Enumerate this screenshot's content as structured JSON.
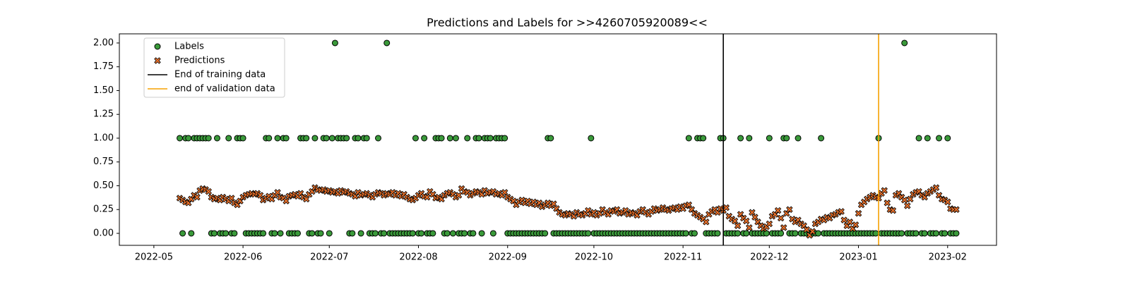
{
  "chart_data": {
    "type": "scatter",
    "title": "Predictions and Labels for >>4260705920089<<",
    "xlim": [
      19101,
      19406
    ],
    "xticks": [
      {
        "value": 19113,
        "label": "2022-05"
      },
      {
        "value": 19144,
        "label": "2022-06"
      },
      {
        "value": 19174,
        "label": "2022-07"
      },
      {
        "value": 19205,
        "label": "2022-08"
      },
      {
        "value": 19236,
        "label": "2022-09"
      },
      {
        "value": 19266,
        "label": "2022-10"
      },
      {
        "value": 19297,
        "label": "2022-11"
      },
      {
        "value": 19327,
        "label": "2022-12"
      },
      {
        "value": 19358,
        "label": "2023-01"
      },
      {
        "value": 19389,
        "label": "2023-02"
      }
    ],
    "ylim": [
      -0.126,
      2.096
    ],
    "yticks": [
      {
        "value": 0,
        "label": "0.00"
      },
      {
        "value": 0.25,
        "label": "0.25"
      },
      {
        "value": 0.5,
        "label": "0.50"
      },
      {
        "value": 0.75,
        "label": "0.75"
      },
      {
        "value": 1,
        "label": "1.00"
      },
      {
        "value": 1.25,
        "label": "1.25"
      },
      {
        "value": 1.5,
        "label": "1.50"
      },
      {
        "value": 1.75,
        "label": "1.75"
      },
      {
        "value": 2,
        "label": "2.00"
      }
    ],
    "legend": "upper left",
    "x": [
      19122,
      19123,
      19124,
      19125,
      19126,
      19127,
      19128,
      19129,
      19130,
      19131,
      19132,
      19133,
      19134,
      19135,
      19136,
      19137,
      19138,
      19139,
      19140,
      19141,
      19142,
      19143,
      19144,
      19145,
      19146,
      19147,
      19148,
      19149,
      19150,
      19151,
      19152,
      19153,
      19154,
      19155,
      19156,
      19157,
      19158,
      19159,
      19160,
      19161,
      19162,
      19163,
      19164,
      19165,
      19166,
      19167,
      19168,
      19169,
      19170,
      19171,
      19172,
      19173,
      19174,
      19175,
      19176,
      19177,
      19178,
      19179,
      19180,
      19181,
      19182,
      19183,
      19184,
      19185,
      19186,
      19187,
      19188,
      19189,
      19190,
      19191,
      19192,
      19193,
      19194,
      19195,
      19196,
      19197,
      19198,
      19199,
      19200,
      19201,
      19202,
      19203,
      19204,
      19205,
      19206,
      19207,
      19208,
      19209,
      19210,
      19211,
      19212,
      19213,
      19214,
      19215,
      19216,
      19217,
      19218,
      19219,
      19220,
      19221,
      19222,
      19223,
      19224,
      19225,
      19226,
      19227,
      19228,
      19229,
      19230,
      19231,
      19232,
      19233,
      19234,
      19235,
      19236,
      19237,
      19238,
      19239,
      19240,
      19241,
      19242,
      19243,
      19244,
      19245,
      19246,
      19247,
      19248,
      19249,
      19250,
      19251,
      19252,
      19253,
      19254,
      19255,
      19256,
      19257,
      19258,
      19259,
      19260,
      19261,
      19262,
      19263,
      19264,
      19265,
      19266,
      19267,
      19268,
      19269,
      19270,
      19271,
      19272,
      19273,
      19274,
      19275,
      19276,
      19277,
      19278,
      19279,
      19280,
      19281,
      19282,
      19283,
      19284,
      19285,
      19286,
      19287,
      19288,
      19289,
      19290,
      19291,
      19292,
      19293,
      19294,
      19295,
      19296,
      19297,
      19298,
      19299,
      19300,
      19301,
      19302,
      19303,
      19304,
      19305,
      19306,
      19307,
      19308,
      19309,
      19310,
      19311,
      19312,
      19313,
      19314,
      19315,
      19316,
      19317,
      19318,
      19319,
      19320,
      19321,
      19322,
      19323,
      19324,
      19325,
      19326,
      19327,
      19328,
      19329,
      19330,
      19331,
      19332,
      19333,
      19334,
      19335,
      19336,
      19337,
      19338,
      19339,
      19340,
      19341,
      19342,
      19343,
      19344,
      19345,
      19346,
      19347,
      19348,
      19349,
      19350,
      19351,
      19352,
      19353,
      19354,
      19355,
      19356,
      19357,
      19358,
      19359,
      19360,
      19361,
      19362,
      19363,
      19364,
      19365,
      19366,
      19367,
      19368,
      19369,
      19370,
      19371,
      19372,
      19373,
      19374,
      19375,
      19376,
      19377,
      19378,
      19379,
      19380,
      19381,
      19382,
      19383,
      19384,
      19385,
      19386,
      19387,
      19388,
      19389,
      19390,
      19391,
      19392
    ],
    "series": [
      {
        "name": "Labels",
        "color": "#3a9a3a",
        "marker": "circle",
        "values": [
          1,
          0,
          1,
          1,
          0,
          1,
          1,
          1,
          1,
          1,
          1,
          0,
          0,
          1,
          0,
          0,
          0,
          1,
          0,
          0,
          1,
          1,
          1,
          0,
          0,
          0,
          0,
          0,
          0,
          0,
          1,
          1,
          0,
          0,
          1,
          0,
          1,
          1,
          0,
          0,
          0,
          0,
          1,
          1,
          1,
          0,
          0,
          1,
          0,
          0,
          1,
          1,
          0,
          1,
          2,
          1,
          1,
          1,
          1,
          0,
          0,
          1,
          1,
          0,
          1,
          1,
          0,
          0,
          0,
          1,
          0,
          0,
          2,
          0,
          0,
          0,
          0,
          0,
          0,
          0,
          0,
          0,
          1,
          0,
          0,
          1,
          0,
          0,
          0,
          1,
          1,
          1,
          0,
          0,
          1,
          0,
          1,
          0,
          0,
          0,
          1,
          0,
          0,
          1,
          1,
          0,
          1,
          1,
          1,
          0,
          1,
          1,
          1,
          1,
          0,
          0,
          0,
          0,
          0,
          0,
          0,
          0,
          0,
          0,
          0,
          0,
          0,
          0,
          1,
          1,
          0,
          0,
          0,
          0,
          0,
          0,
          0,
          0,
          0,
          0,
          0,
          0,
          0,
          1,
          0,
          0,
          0,
          0,
          0,
          0,
          0,
          0,
          0,
          0,
          0,
          0,
          0,
          0,
          0,
          0,
          0,
          0,
          0,
          0,
          0,
          0,
          0,
          0,
          0,
          0,
          0,
          0,
          0,
          0,
          0,
          0,
          0,
          1,
          0,
          0,
          1,
          1,
          1,
          0,
          0,
          0,
          0,
          0,
          1,
          1,
          0,
          0,
          0,
          0,
          0,
          1,
          0,
          0,
          1,
          0,
          0,
          0,
          0,
          0,
          0,
          1,
          0,
          0,
          0,
          0,
          1,
          1,
          0,
          0,
          0,
          1,
          0,
          0,
          0,
          0,
          0,
          0,
          0,
          1,
          0,
          0,
          0,
          0,
          0,
          0,
          0,
          0,
          0,
          0,
          0,
          0,
          0,
          0,
          0,
          0,
          0,
          0,
          0,
          1,
          0,
          0,
          0,
          0,
          0,
          0,
          0,
          0,
          2,
          0,
          0,
          0,
          0,
          1,
          0,
          0,
          1,
          0,
          0,
          0,
          1,
          0,
          0,
          1,
          0,
          0,
          0
        ]
      },
      {
        "name": "Predictions",
        "color": "#e8702a",
        "marker": "x",
        "values": [
          0.37,
          0.35,
          0.33,
          0.32,
          0.36,
          0.4,
          0.38,
          0.45,
          0.47,
          0.46,
          0.44,
          0.38,
          0.36,
          0.37,
          0.35,
          0.38,
          0.36,
          0.34,
          0.37,
          0.32,
          0.3,
          0.34,
          0.38,
          0.4,
          0.41,
          0.42,
          0.41,
          0.42,
          0.4,
          0.35,
          0.37,
          0.39,
          0.36,
          0.4,
          0.43,
          0.38,
          0.37,
          0.34,
          0.39,
          0.4,
          0.41,
          0.39,
          0.42,
          0.38,
          0.36,
          0.41,
          0.44,
          0.48,
          0.46,
          0.45,
          0.46,
          0.44,
          0.45,
          0.43,
          0.44,
          0.42,
          0.45,
          0.43,
          0.44,
          0.42,
          0.41,
          0.39,
          0.43,
          0.4,
          0.41,
          0.42,
          0.4,
          0.38,
          0.41,
          0.43,
          0.42,
          0.4,
          0.42,
          0.41,
          0.43,
          0.4,
          0.42,
          0.39,
          0.41,
          0.38,
          0.36,
          0.35,
          0.37,
          0.4,
          0.42,
          0.39,
          0.38,
          0.44,
          0.41,
          0.37,
          0.38,
          0.36,
          0.4,
          0.42,
          0.43,
          0.41,
          0.38,
          0.4,
          0.47,
          0.44,
          0.43,
          0.4,
          0.42,
          0.44,
          0.43,
          0.41,
          0.45,
          0.42,
          0.43,
          0.44,
          0.41,
          0.42,
          0.4,
          0.43,
          0.38,
          0.36,
          0.34,
          0.3,
          0.33,
          0.35,
          0.32,
          0.34,
          0.31,
          0.33,
          0.3,
          0.32,
          0.28,
          0.3,
          0.32,
          0.29,
          0.31,
          0.26,
          0.22,
          0.2,
          0.19,
          0.21,
          0.2,
          0.18,
          0.22,
          0.2,
          0.19,
          0.21,
          0.24,
          0.2,
          0.22,
          0.19,
          0.21,
          0.25,
          0.22,
          0.2,
          0.24,
          0.23,
          0.25,
          0.21,
          0.22,
          0.24,
          0.2,
          0.22,
          0.21,
          0.19,
          0.23,
          0.25,
          0.22,
          0.2,
          0.23,
          0.26,
          0.24,
          0.25,
          0.27,
          0.25,
          0.24,
          0.26,
          0.27,
          0.25,
          0.28,
          0.26,
          0.29,
          0.3,
          0.25,
          0.21,
          0.19,
          0.17,
          0.15,
          0.12,
          0.2,
          0.23,
          0.25,
          0.22,
          0.26,
          0.24,
          0.27,
          0.18,
          0.15,
          0.13,
          0.08,
          0.2,
          0.16,
          0.13,
          0.06,
          0.22,
          0.17,
          0.12,
          0.08,
          0.05,
          0.07,
          0.1,
          0.18,
          0.2,
          0.24,
          0.16,
          0.06,
          0.21,
          0.25,
          0.15,
          0.12,
          0.14,
          0.1,
          0.08,
          0.04,
          -0.02,
          0.02,
          0.1,
          0.12,
          0.15,
          0.14,
          0.17,
          0.16,
          0.19,
          0.2,
          0.22,
          0.23,
          0.14,
          0.08,
          0.12,
          0.05,
          0.09,
          0.21,
          0.3,
          0.33,
          0.36,
          0.38,
          0.4,
          0.38,
          0.37,
          0.42,
          0.45,
          0.32,
          0.25,
          0.24,
          0.4,
          0.42,
          0.38,
          0.35,
          0.29,
          0.36,
          0.41,
          0.43,
          0.44,
          0.4,
          0.38,
          0.42,
          0.44,
          0.46,
          0.48,
          0.4,
          0.36,
          0.35,
          0.33,
          0.26,
          0.25,
          0.25
        ]
      }
    ],
    "vlines": [
      {
        "name": "End of training data",
        "x": 19311,
        "color": "#000000"
      },
      {
        "name": "end of validation data",
        "x": 19365,
        "color": "#f5a000"
      }
    ]
  }
}
